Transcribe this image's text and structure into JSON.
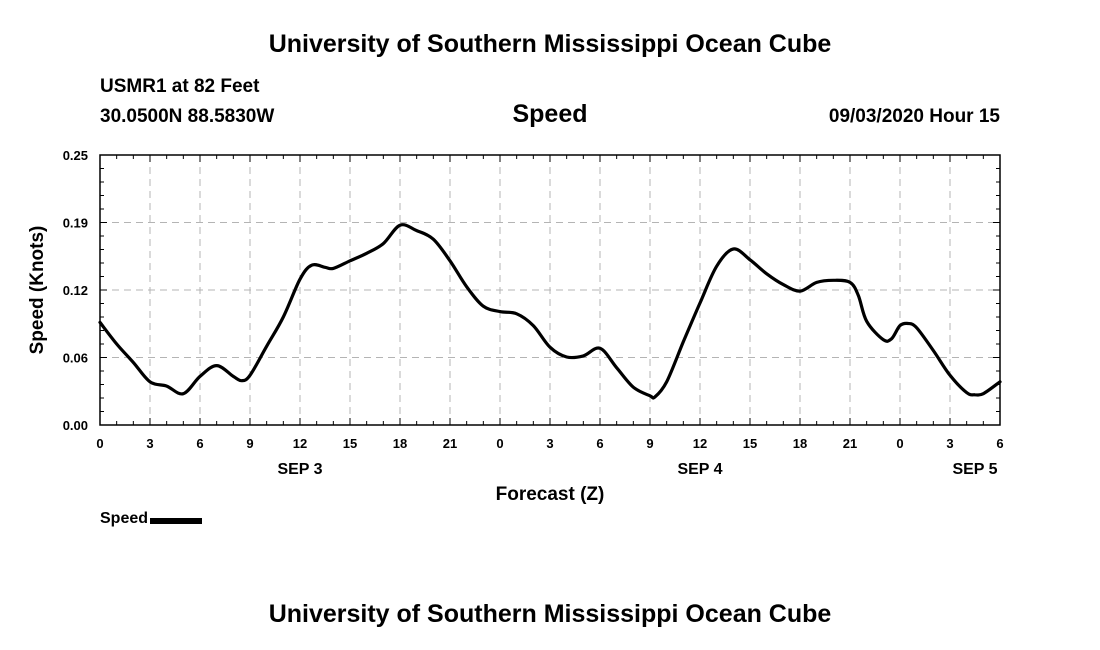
{
  "header": {
    "title": "University of Southern Mississippi Ocean Cube",
    "station": "USMR1 at 82 Feet",
    "coords": "30.0500N 88.5830W",
    "chart_title": "Speed",
    "timestamp": "09/03/2020 Hour 15"
  },
  "footer": {
    "title": "University of Southern Mississippi Ocean Cube"
  },
  "legend": {
    "label": "Speed"
  },
  "chart_data": {
    "type": "line",
    "title": "Speed",
    "xlabel": "Forecast (Z)",
    "ylabel": "Speed (Knots)",
    "xlim": [
      0,
      54
    ],
    "ylim": [
      0,
      0.25
    ],
    "x_ticks": [
      0,
      3,
      6,
      9,
      12,
      15,
      18,
      21,
      24,
      27,
      30,
      33,
      36,
      39,
      42,
      45,
      48,
      51,
      54
    ],
    "x_tick_labels": [
      "0",
      "3",
      "6",
      "9",
      "12",
      "15",
      "18",
      "21",
      "0",
      "3",
      "6",
      "9",
      "12",
      "15",
      "18",
      "21",
      "0",
      "3",
      "6"
    ],
    "y_ticks": [
      0,
      0.0625,
      0.125,
      0.1875,
      0.25
    ],
    "y_tick_labels": [
      "0.00",
      "0.06",
      "0.12",
      "0.19",
      "0.25"
    ],
    "day_labels": [
      {
        "x": 12,
        "label": "SEP 3"
      },
      {
        "x": 36,
        "label": "SEP 4"
      },
      {
        "x": 52.5,
        "label": "SEP 5"
      }
    ],
    "grid": true,
    "legend_position": "bottom-left",
    "series": [
      {
        "name": "Speed",
        "color": "#000000",
        "x": [
          0,
          1,
          2,
          3,
          4,
          5,
          6,
          7,
          8,
          8.5,
          9,
          10,
          11,
          12,
          12.7,
          13.5,
          14,
          15,
          16,
          17,
          18,
          19,
          20,
          21,
          22,
          23,
          24,
          25,
          26,
          27,
          28,
          29,
          30,
          31,
          32,
          33,
          33.3,
          34,
          35,
          36,
          37,
          38,
          39,
          40,
          41,
          42,
          43,
          44,
          45,
          45.5,
          46,
          47,
          47.5,
          48,
          48.5,
          49,
          50,
          51,
          52,
          52.5,
          53,
          54
        ],
        "values": [
          0.095,
          0.075,
          0.058,
          0.04,
          0.036,
          0.029,
          0.045,
          0.055,
          0.045,
          0.041,
          0.046,
          0.073,
          0.1,
          0.135,
          0.148,
          0.146,
          0.145,
          0.152,
          0.159,
          0.168,
          0.185,
          0.18,
          0.172,
          0.152,
          0.128,
          0.11,
          0.105,
          0.103,
          0.092,
          0.072,
          0.063,
          0.064,
          0.071,
          0.053,
          0.035,
          0.027,
          0.026,
          0.04,
          0.077,
          0.113,
          0.147,
          0.163,
          0.153,
          0.14,
          0.13,
          0.124,
          0.132,
          0.134,
          0.132,
          0.12,
          0.096,
          0.079,
          0.08,
          0.092,
          0.094,
          0.09,
          0.069,
          0.046,
          0.03,
          0.028,
          0.029,
          0.04
        ]
      }
    ]
  }
}
